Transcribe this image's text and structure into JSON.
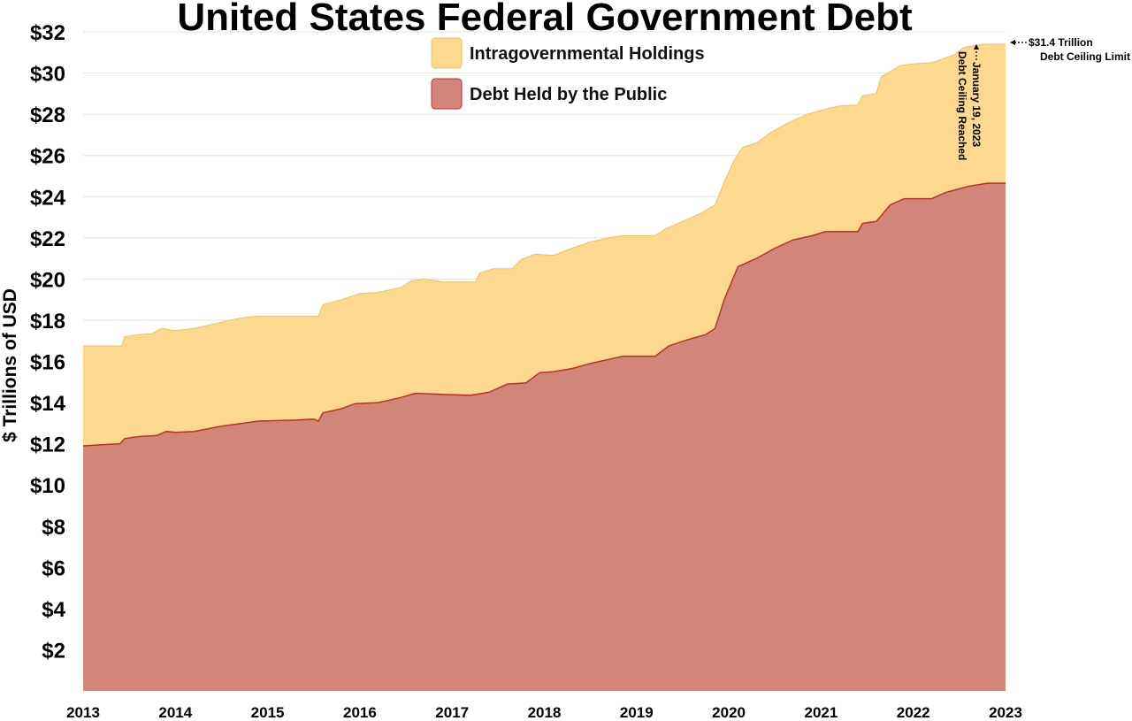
{
  "chart_data": {
    "type": "area",
    "stacked": true,
    "title": "United States Federal Government Debt",
    "xlabel": "",
    "ylabel": "$ Trillions of USD",
    "xlim": [
      2013,
      2023
    ],
    "ylim": [
      0,
      32
    ],
    "x_ticks": [
      {
        "value": 2013,
        "label": "2013"
      },
      {
        "value": 2014,
        "label": "2014"
      },
      {
        "value": 2015,
        "label": "2015"
      },
      {
        "value": 2016,
        "label": "2016"
      },
      {
        "value": 2017,
        "label": "2017"
      },
      {
        "value": 2018,
        "label": "2018"
      },
      {
        "value": 2019,
        "label": "2019"
      },
      {
        "value": 2020,
        "label": "2020"
      },
      {
        "value": 2021,
        "label": "2021"
      },
      {
        "value": 2022,
        "label": "2022"
      },
      {
        "value": 2023,
        "label": "2023"
      }
    ],
    "y_ticks": [
      {
        "value": 2,
        "label": "$2"
      },
      {
        "value": 4,
        "label": "$4"
      },
      {
        "value": 6,
        "label": "$6"
      },
      {
        "value": 8,
        "label": "$8"
      },
      {
        "value": 10,
        "label": "$10"
      },
      {
        "value": 12,
        "label": "$12"
      },
      {
        "value": 14,
        "label": "$14"
      },
      {
        "value": 16,
        "label": "$16"
      },
      {
        "value": 18,
        "label": "$18"
      },
      {
        "value": 20,
        "label": "$20"
      },
      {
        "value": 22,
        "label": "$22"
      },
      {
        "value": 24,
        "label": "$24"
      },
      {
        "value": 26,
        "label": "$26"
      },
      {
        "value": 28,
        "label": "$28"
      },
      {
        "value": 30,
        "label": "$30"
      },
      {
        "value": 32,
        "label": "$32"
      }
    ],
    "grid": true,
    "legend_position": "top-center",
    "series": [
      {
        "name": "Debt Held by the Public",
        "color": "#d4857a",
        "edge_color": "#b8322a",
        "points": [
          [
            2013.0,
            11.9
          ],
          [
            2013.4,
            12.0
          ],
          [
            2013.45,
            12.25
          ],
          [
            2013.6,
            12.35
          ],
          [
            2013.8,
            12.4
          ],
          [
            2013.9,
            12.6
          ],
          [
            2014.0,
            12.55
          ],
          [
            2014.2,
            12.6
          ],
          [
            2014.5,
            12.85
          ],
          [
            2014.9,
            13.1
          ],
          [
            2015.3,
            13.15
          ],
          [
            2015.5,
            13.2
          ],
          [
            2015.55,
            13.1
          ],
          [
            2015.6,
            13.5
          ],
          [
            2015.8,
            13.7
          ],
          [
            2015.95,
            13.95
          ],
          [
            2016.2,
            14.0
          ],
          [
            2016.45,
            14.25
          ],
          [
            2016.6,
            14.45
          ],
          [
            2016.9,
            14.4
          ],
          [
            2017.2,
            14.35
          ],
          [
            2017.4,
            14.5
          ],
          [
            2017.6,
            14.9
          ],
          [
            2017.8,
            14.95
          ],
          [
            2017.95,
            15.45
          ],
          [
            2018.1,
            15.5
          ],
          [
            2018.3,
            15.65
          ],
          [
            2018.5,
            15.9
          ],
          [
            2018.7,
            16.1
          ],
          [
            2018.85,
            16.25
          ],
          [
            2019.1,
            16.25
          ],
          [
            2019.2,
            16.25
          ],
          [
            2019.35,
            16.75
          ],
          [
            2019.55,
            17.05
          ],
          [
            2019.75,
            17.3
          ],
          [
            2019.85,
            17.6
          ],
          [
            2019.95,
            19.0
          ],
          [
            2020.1,
            20.6
          ],
          [
            2020.3,
            21.0
          ],
          [
            2020.5,
            21.5
          ],
          [
            2020.7,
            21.9
          ],
          [
            2020.9,
            22.1
          ],
          [
            2021.05,
            22.3
          ],
          [
            2021.4,
            22.3
          ],
          [
            2021.45,
            22.7
          ],
          [
            2021.6,
            22.8
          ],
          [
            2021.75,
            23.6
          ],
          [
            2021.9,
            23.9
          ],
          [
            2022.2,
            23.9
          ],
          [
            2022.35,
            24.2
          ],
          [
            2022.6,
            24.5
          ],
          [
            2022.8,
            24.65
          ],
          [
            2023.0,
            24.65
          ]
        ]
      },
      {
        "name": "Intragovernmental Holdings",
        "color": "#fcd98f",
        "edge_color": "#f0c060",
        "points": [
          [
            2013.0,
            16.75
          ],
          [
            2013.42,
            16.75
          ],
          [
            2013.45,
            17.2
          ],
          [
            2013.6,
            17.3
          ],
          [
            2013.75,
            17.35
          ],
          [
            2013.85,
            17.6
          ],
          [
            2014.0,
            17.5
          ],
          [
            2014.2,
            17.6
          ],
          [
            2014.5,
            17.9
          ],
          [
            2014.7,
            18.1
          ],
          [
            2014.9,
            18.2
          ],
          [
            2015.2,
            18.2
          ],
          [
            2015.55,
            18.2
          ],
          [
            2015.6,
            18.75
          ],
          [
            2015.8,
            19.0
          ],
          [
            2016.0,
            19.3
          ],
          [
            2016.2,
            19.35
          ],
          [
            2016.45,
            19.6
          ],
          [
            2016.55,
            19.9
          ],
          [
            2016.7,
            20.0
          ],
          [
            2016.9,
            19.85
          ],
          [
            2017.25,
            19.85
          ],
          [
            2017.3,
            20.3
          ],
          [
            2017.45,
            20.5
          ],
          [
            2017.65,
            20.5
          ],
          [
            2017.75,
            20.95
          ],
          [
            2017.9,
            21.2
          ],
          [
            2018.1,
            21.15
          ],
          [
            2018.3,
            21.5
          ],
          [
            2018.5,
            21.8
          ],
          [
            2018.7,
            22.0
          ],
          [
            2018.85,
            22.1
          ],
          [
            2019.2,
            22.1
          ],
          [
            2019.3,
            22.4
          ],
          [
            2019.5,
            22.8
          ],
          [
            2019.7,
            23.2
          ],
          [
            2019.85,
            23.6
          ],
          [
            2019.95,
            24.7
          ],
          [
            2020.05,
            25.7
          ],
          [
            2020.15,
            26.4
          ],
          [
            2020.3,
            26.6
          ],
          [
            2020.45,
            27.1
          ],
          [
            2020.65,
            27.6
          ],
          [
            2020.85,
            28.0
          ],
          [
            2021.05,
            28.25
          ],
          [
            2021.2,
            28.4
          ],
          [
            2021.4,
            28.45
          ],
          [
            2021.45,
            28.9
          ],
          [
            2021.6,
            29.0
          ],
          [
            2021.65,
            29.8
          ],
          [
            2021.85,
            30.35
          ],
          [
            2022.0,
            30.45
          ],
          [
            2022.2,
            30.5
          ],
          [
            2022.3,
            30.65
          ],
          [
            2022.45,
            30.9
          ],
          [
            2022.55,
            31.25
          ],
          [
            2022.75,
            31.4
          ],
          [
            2023.0,
            31.4
          ]
        ]
      }
    ],
    "annotations": [
      {
        "text": "$31.4 Trillion",
        "x": 2023.0,
        "y": 31.4
      },
      {
        "text": "Debt Ceiling Limit",
        "x": 2023.0,
        "y": 31.4
      },
      {
        "text": "January 19, 2023",
        "x": 2022.9,
        "y": 31.4
      },
      {
        "text": "Debt Ceiling Reached",
        "x": 2022.9,
        "y": 31.4
      }
    ]
  }
}
